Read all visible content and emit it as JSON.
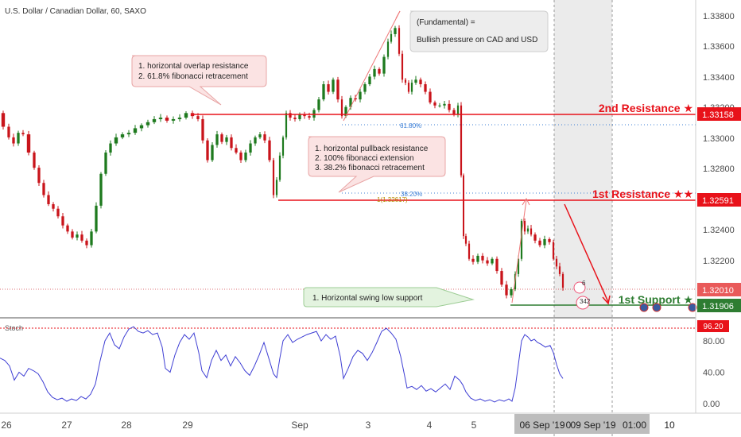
{
  "symbol_title": "U.S. Dollar / Canadian Dollar, 60, SAXO",
  "colors": {
    "resistance": "#e8121a",
    "support": "#2e7d32",
    "candle_up": "#1e7a1e",
    "candle_down": "#c9141b",
    "stoch": "#3f3fd4",
    "stoch_level": "#e8121a",
    "fib": "#3c7fd6",
    "fib_ext": "#b58a00",
    "note_fill": "#fbe3e3",
    "note_stroke": "#e8a5a5",
    "fund_fill": "#ededed",
    "support_note_fill": "#e3f3df",
    "support_note_stroke": "#9ccc94",
    "shade": "#e7e7e7",
    "axis_text": "#4a4a4a"
  },
  "price_axis": {
    "ticks": [
      "1.33800",
      "1.33600",
      "1.33400",
      "1.33200",
      "1.33000",
      "1.32800",
      "1.32600",
      "1.32400",
      "1.32200",
      "1.32000"
    ],
    "tag_r2": "1.33158",
    "tag_r1": "1.32591",
    "tag_current": "1.32010",
    "tag_s1": "1.31906"
  },
  "stoch_panel": {
    "label": "Stoch",
    "ticks": [
      "80.00",
      "40.00",
      "0.00"
    ],
    "tag": "96.20",
    "level_value": 96.2,
    "range": [
      -10,
      110
    ]
  },
  "time_axis": {
    "labels": [
      "26",
      "27",
      "28",
      "29",
      "Sep",
      "3",
      "4",
      "5"
    ],
    "right_labels": [
      "06 Sep '19",
      "0",
      "09 Sep '19",
      "01:00",
      "10"
    ]
  },
  "levels": {
    "r2_label": "2nd Resistance ★",
    "r1_label": "1st Resistance ★★",
    "s1_label": "1st Support ★"
  },
  "fib_labels": {
    "fib_618": "61.80%",
    "fib_382": "38.20%",
    "fib_ext": "1(1.32617)"
  },
  "notes": {
    "overlap": [
      "1. horizontal overlap resistance",
      "2.  61.8% fibonacci retracement"
    ],
    "pullback": [
      "1. horizontal pullback resistance",
      "2. 100% fibonacci extension",
      "3. 38.2% fibonacci retracement"
    ],
    "fundamental": [
      "(Fundamental) =",
      "Bullish pressure on CAD and USD"
    ],
    "support": "1. Horizontal swing low support"
  },
  "events": {
    "count_top": "6",
    "count_bottom": "342"
  },
  "chart_data": {
    "type": "candlestick",
    "title": "U.S. Dollar / Canadian Dollar, 60, SAXO",
    "y_range": [
      1.3187,
      1.3389
    ],
    "levels": [
      {
        "name": "2nd Resistance",
        "value": 1.33158
      },
      {
        "name": "1st Resistance",
        "value": 1.32591
      },
      {
        "name": "1st Support",
        "value": 1.31906
      }
    ],
    "current_price": 1.3201,
    "x_labels": [
      "26",
      "27",
      "28",
      "29",
      "Sep",
      "3",
      "4",
      "5",
      "06 Sep '19",
      "09 Sep '19",
      "10"
    ],
    "price_path": [
      [
        0,
        1.3316
      ],
      [
        8,
        1.3307
      ],
      [
        14,
        1.33
      ],
      [
        20,
        1.3296
      ],
      [
        26,
        1.3303
      ],
      [
        32,
        1.3302
      ],
      [
        40,
        1.329
      ],
      [
        46,
        1.328
      ],
      [
        52,
        1.327
      ],
      [
        58,
        1.3262
      ],
      [
        64,
        1.3256
      ],
      [
        70,
        1.3253
      ],
      [
        76,
        1.3248
      ],
      [
        82,
        1.3242
      ],
      [
        88,
        1.3238
      ],
      [
        94,
        1.3234
      ],
      [
        100,
        1.3236
      ],
      [
        106,
        1.3232
      ],
      [
        112,
        1.3229
      ],
      [
        118,
        1.3238
      ],
      [
        124,
        1.3255
      ],
      [
        130,
        1.3276
      ],
      [
        136,
        1.329
      ],
      [
        142,
        1.3296
      ],
      [
        150,
        1.33
      ],
      [
        158,
        1.3302
      ],
      [
        166,
        1.3303
      ],
      [
        174,
        1.3306
      ],
      [
        182,
        1.3308
      ],
      [
        190,
        1.331
      ],
      [
        198,
        1.3312
      ],
      [
        206,
        1.3313
      ],
      [
        214,
        1.3311
      ],
      [
        222,
        1.3312
      ],
      [
        230,
        1.3313
      ],
      [
        238,
        1.3316
      ],
      [
        246,
        1.3314
      ],
      [
        252,
        1.3312
      ],
      [
        258,
        1.3298
      ],
      [
        264,
        1.3285
      ],
      [
        270,
        1.3295
      ],
      [
        276,
        1.3302
      ],
      [
        282,
        1.3297
      ],
      [
        288,
        1.33
      ],
      [
        294,
        1.3293
      ],
      [
        300,
        1.329
      ],
      [
        306,
        1.3285
      ],
      [
        312,
        1.329
      ],
      [
        318,
        1.3296
      ],
      [
        324,
        1.33
      ],
      [
        330,
        1.3302
      ],
      [
        336,
        1.3298
      ],
      [
        342,
        1.3285
      ],
      [
        346,
        1.3262
      ],
      [
        350,
        1.3272
      ],
      [
        354,
        1.3288
      ],
      [
        358,
        1.33
      ],
      [
        362,
        1.3316
      ],
      [
        368,
        1.3313
      ],
      [
        374,
        1.3312
      ],
      [
        380,
        1.3315
      ],
      [
        386,
        1.3314
      ],
      [
        392,
        1.3313
      ],
      [
        398,
        1.3318
      ],
      [
        404,
        1.3325
      ],
      [
        410,
        1.3335
      ],
      [
        416,
        1.333
      ],
      [
        422,
        1.3338
      ],
      [
        428,
        1.3325
      ],
      [
        432,
        1.3314
      ],
      [
        438,
        1.332
      ],
      [
        444,
        1.3326
      ],
      [
        450,
        1.3325
      ],
      [
        456,
        1.333
      ],
      [
        462,
        1.3335
      ],
      [
        468,
        1.334
      ],
      [
        474,
        1.3345
      ],
      [
        480,
        1.3342
      ],
      [
        486,
        1.3353
      ],
      [
        490,
        1.3363
      ],
      [
        494,
        1.3368
      ],
      [
        500,
        1.3372
      ],
      [
        504,
        1.3355
      ],
      [
        508,
        1.3338
      ],
      [
        512,
        1.3336
      ],
      [
        516,
        1.333
      ],
      [
        520,
        1.3336
      ],
      [
        526,
        1.3338
      ],
      [
        532,
        1.3335
      ],
      [
        538,
        1.333
      ],
      [
        544,
        1.3323
      ],
      [
        550,
        1.3321
      ],
      [
        556,
        1.3321
      ],
      [
        562,
        1.3322
      ],
      [
        568,
        1.3318
      ],
      [
        574,
        1.3315
      ],
      [
        578,
        1.3321
      ],
      [
        582,
        1.3275
      ],
      [
        584,
        1.3235
      ],
      [
        588,
        1.323
      ],
      [
        592,
        1.322
      ],
      [
        598,
        1.3218
      ],
      [
        604,
        1.3222
      ],
      [
        610,
        1.3219
      ],
      [
        616,
        1.3217
      ],
      [
        622,
        1.322
      ],
      [
        628,
        1.3212
      ],
      [
        634,
        1.3203
      ],
      [
        640,
        1.3196
      ],
      [
        646,
        1.32
      ],
      [
        650,
        1.321
      ],
      [
        654,
        1.322
      ],
      [
        658,
        1.3245
      ],
      [
        662,
        1.3238
      ],
      [
        666,
        1.324
      ],
      [
        670,
        1.3236
      ],
      [
        676,
        1.3232
      ],
      [
        682,
        1.3229
      ],
      [
        688,
        1.3233
      ],
      [
        694,
        1.3231
      ],
      [
        698,
        1.322
      ],
      [
        702,
        1.3215
      ],
      [
        706,
        1.321
      ],
      [
        710,
        1.3201
      ]
    ],
    "stochastic": {
      "name": "Stoch",
      "level": 96.2,
      "y_range": [
        -10,
        110
      ],
      "points": [
        [
          0,
          58
        ],
        [
          6,
          55
        ],
        [
          12,
          48
        ],
        [
          18,
          30
        ],
        [
          24,
          40
        ],
        [
          30,
          35
        ],
        [
          36,
          45
        ],
        [
          42,
          42
        ],
        [
          48,
          38
        ],
        [
          54,
          28
        ],
        [
          60,
          15
        ],
        [
          66,
          8
        ],
        [
          72,
          5
        ],
        [
          78,
          7
        ],
        [
          84,
          3
        ],
        [
          90,
          6
        ],
        [
          96,
          4
        ],
        [
          102,
          9
        ],
        [
          108,
          6
        ],
        [
          114,
          12
        ],
        [
          120,
          25
        ],
        [
          126,
          55
        ],
        [
          132,
          80
        ],
        [
          138,
          90
        ],
        [
          144,
          75
        ],
        [
          150,
          70
        ],
        [
          156,
          85
        ],
        [
          162,
          95
        ],
        [
          168,
          98
        ],
        [
          174,
          92
        ],
        [
          180,
          90
        ],
        [
          186,
          93
        ],
        [
          192,
          88
        ],
        [
          198,
          90
        ],
        [
          204,
          72
        ],
        [
          208,
          45
        ],
        [
          214,
          40
        ],
        [
          220,
          62
        ],
        [
          226,
          78
        ],
        [
          232,
          88
        ],
        [
          238,
          82
        ],
        [
          244,
          90
        ],
        [
          250,
          65
        ],
        [
          254,
          42
        ],
        [
          260,
          33
        ],
        [
          266,
          55
        ],
        [
          272,
          68
        ],
        [
          278,
          55
        ],
        [
          284,
          62
        ],
        [
          290,
          48
        ],
        [
          296,
          60
        ],
        [
          302,
          52
        ],
        [
          308,
          42
        ],
        [
          314,
          36
        ],
        [
          320,
          48
        ],
        [
          326,
          62
        ],
        [
          332,
          78
        ],
        [
          338,
          58
        ],
        [
          344,
          38
        ],
        [
          348,
          33
        ],
        [
          352,
          58
        ],
        [
          356,
          80
        ],
        [
          362,
          88
        ],
        [
          368,
          78
        ],
        [
          374,
          82
        ],
        [
          380,
          85
        ],
        [
          386,
          88
        ],
        [
          392,
          90
        ],
        [
          398,
          92
        ],
        [
          404,
          80
        ],
        [
          410,
          88
        ],
        [
          416,
          82
        ],
        [
          422,
          86
        ],
        [
          428,
          60
        ],
        [
          432,
          32
        ],
        [
          438,
          45
        ],
        [
          444,
          60
        ],
        [
          450,
          68
        ],
        [
          456,
          64
        ],
        [
          462,
          55
        ],
        [
          468,
          65
        ],
        [
          474,
          78
        ],
        [
          480,
          92
        ],
        [
          486,
          96
        ],
        [
          492,
          90
        ],
        [
          498,
          82
        ],
        [
          504,
          60
        ],
        [
          508,
          40
        ],
        [
          512,
          20
        ],
        [
          518,
          22
        ],
        [
          524,
          18
        ],
        [
          530,
          23
        ],
        [
          536,
          16
        ],
        [
          542,
          19
        ],
        [
          548,
          15
        ],
        [
          554,
          20
        ],
        [
          560,
          25
        ],
        [
          566,
          18
        ],
        [
          572,
          35
        ],
        [
          578,
          30
        ],
        [
          582,
          24
        ],
        [
          586,
          15
        ],
        [
          592,
          7
        ],
        [
          598,
          4
        ],
        [
          604,
          6
        ],
        [
          610,
          3
        ],
        [
          616,
          5
        ],
        [
          622,
          2
        ],
        [
          628,
          5
        ],
        [
          634,
          3
        ],
        [
          640,
          6
        ],
        [
          644,
          3
        ],
        [
          648,
          20
        ],
        [
          652,
          50
        ],
        [
          656,
          80
        ],
        [
          660,
          88
        ],
        [
          664,
          85
        ],
        [
          668,
          80
        ],
        [
          672,
          82
        ],
        [
          676,
          78
        ],
        [
          680,
          76
        ],
        [
          686,
          72
        ],
        [
          692,
          74
        ],
        [
          696,
          65
        ],
        [
          700,
          50
        ],
        [
          704,
          38
        ],
        [
          708,
          32
        ]
      ]
    }
  }
}
